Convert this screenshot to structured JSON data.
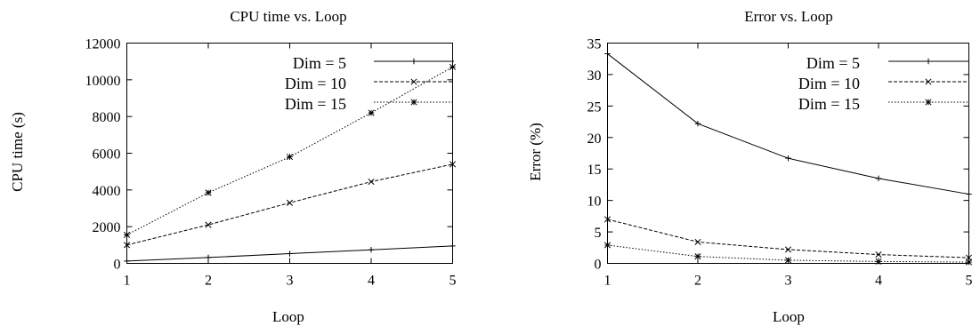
{
  "chart_data": [
    {
      "type": "line",
      "title": "CPU time vs. Loop",
      "xlabel": "Loop",
      "ylabel": "CPU time (s)",
      "x": [
        1,
        2,
        3,
        4,
        5
      ],
      "xlim": [
        1,
        5
      ],
      "ylim": [
        0,
        12000
      ],
      "xticks": [
        "1",
        "2",
        "3",
        "4",
        "5"
      ],
      "yticks": [
        "0",
        "2000",
        "4000",
        "6000",
        "8000",
        "10000",
        "12000"
      ],
      "grid": false,
      "legend_position": "top-right",
      "series": [
        {
          "name": "Dim = 5",
          "style": "solid",
          "marker": "plus",
          "values": [
            130,
            320,
            530,
            740,
            950
          ]
        },
        {
          "name": "Dim = 10",
          "style": "dashed",
          "marker": "x",
          "values": [
            1000,
            2100,
            3300,
            4450,
            5400
          ]
        },
        {
          "name": "Dim = 15",
          "style": "dotted",
          "marker": "star",
          "values": [
            1550,
            3850,
            5800,
            8200,
            10700
          ]
        }
      ]
    },
    {
      "type": "line",
      "title": "Error vs. Loop",
      "xlabel": "Loop",
      "ylabel": "Error (%)",
      "x": [
        1,
        2,
        3,
        4,
        5
      ],
      "xlim": [
        1,
        5
      ],
      "ylim": [
        0,
        35
      ],
      "xticks": [
        "1",
        "2",
        "3",
        "4",
        "5"
      ],
      "yticks": [
        "0",
        "5",
        "10",
        "15",
        "20",
        "25",
        "30",
        "35"
      ],
      "grid": false,
      "legend_position": "top-right",
      "series": [
        {
          "name": "Dim = 5",
          "style": "solid",
          "marker": "plus",
          "values": [
            33.3,
            22.2,
            16.7,
            13.5,
            11.0
          ]
        },
        {
          "name": "Dim = 10",
          "style": "dashed",
          "marker": "x",
          "values": [
            7.0,
            3.4,
            2.2,
            1.4,
            0.9
          ]
        },
        {
          "name": "Dim = 15",
          "style": "dotted",
          "marker": "star",
          "values": [
            2.9,
            1.1,
            0.5,
            0.3,
            0.2
          ]
        }
      ]
    }
  ]
}
